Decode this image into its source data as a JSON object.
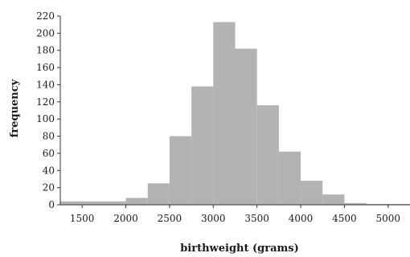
{
  "chart_data": {
    "type": "bar",
    "subtype": "histogram",
    "title": "",
    "xlabel": "birthweight (grams)",
    "ylabel": "frequency",
    "x_ticks": [
      1500,
      2000,
      2500,
      3000,
      3500,
      4000,
      4500,
      5000
    ],
    "y_ticks": [
      0,
      20,
      40,
      60,
      80,
      100,
      120,
      140,
      160,
      180,
      200,
      220
    ],
    "xlim": [
      1250,
      5250
    ],
    "ylim": [
      0,
      220
    ],
    "bins": [
      {
        "start": 1250,
        "end": 1500,
        "count": 4
      },
      {
        "start": 1500,
        "end": 1750,
        "count": 4
      },
      {
        "start": 1750,
        "end": 2000,
        "count": 4
      },
      {
        "start": 2000,
        "end": 2250,
        "count": 8
      },
      {
        "start": 2250,
        "end": 2500,
        "count": 25
      },
      {
        "start": 2500,
        "end": 2750,
        "count": 80
      },
      {
        "start": 2750,
        "end": 3000,
        "count": 138
      },
      {
        "start": 3000,
        "end": 3250,
        "count": 213
      },
      {
        "start": 3250,
        "end": 3500,
        "count": 182
      },
      {
        "start": 3500,
        "end": 3750,
        "count": 116
      },
      {
        "start": 3750,
        "end": 4000,
        "count": 62
      },
      {
        "start": 4000,
        "end": 4250,
        "count": 28
      },
      {
        "start": 4250,
        "end": 4500,
        "count": 12
      },
      {
        "start": 4500,
        "end": 4750,
        "count": 2
      },
      {
        "start": 4750,
        "end": 5000,
        "count": 1
      },
      {
        "start": 5000,
        "end": 5250,
        "count": 1
      }
    ],
    "bar_color": "#b3b3b3",
    "grid": false,
    "legend": "none"
  }
}
